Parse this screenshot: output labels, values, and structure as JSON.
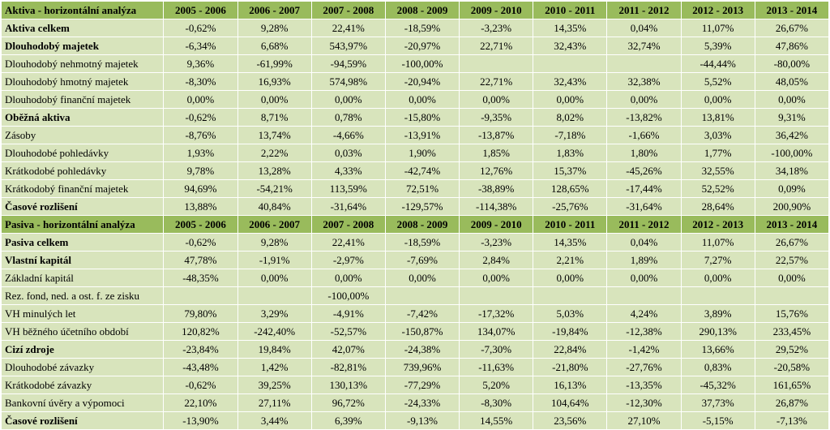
{
  "aktiva": {
    "header": [
      "Aktiva - horizontální analýza",
      "2005 - 2006",
      "2006 - 2007",
      "2007 - 2008",
      "2008 - 2009",
      "2009 - 2010",
      "2010 - 2011",
      "2011 - 2012",
      "2012 - 2013",
      "2013 - 2014"
    ],
    "rows": [
      {
        "label": "Aktiva celkem",
        "bold": true,
        "values": [
          "-0,62%",
          "9,28%",
          "22,41%",
          "-18,59%",
          "-3,23%",
          "14,35%",
          "0,04%",
          "11,07%",
          "26,67%"
        ]
      },
      {
        "label": "Dlouhodobý majetek",
        "bold": true,
        "values": [
          "-6,34%",
          "6,68%",
          "543,97%",
          "-20,97%",
          "22,71%",
          "32,43%",
          "32,74%",
          "5,39%",
          "47,86%"
        ]
      },
      {
        "label": "Dlouhodobý nehmotný majetek",
        "bold": false,
        "values": [
          "9,36%",
          "-61,99%",
          "-94,59%",
          "-100,00%",
          "",
          "",
          "",
          "-44,44%",
          "-80,00%"
        ]
      },
      {
        "label": "Dlouhodobý hmotný majetek",
        "bold": false,
        "values": [
          "-8,30%",
          "16,93%",
          "574,98%",
          "-20,94%",
          "22,71%",
          "32,43%",
          "32,38%",
          "5,52%",
          "48,05%"
        ]
      },
      {
        "label": "Dlouhodobý finanční majetek",
        "bold": false,
        "values": [
          "0,00%",
          "0,00%",
          "0,00%",
          "0,00%",
          "0,00%",
          "0,00%",
          "0,00%",
          "0,00%",
          "0,00%"
        ]
      },
      {
        "label": "Oběžná aktiva",
        "bold": true,
        "values": [
          "-0,62%",
          "8,71%",
          "0,78%",
          "-15,80%",
          "-9,35%",
          "8,02%",
          "-13,82%",
          "13,81%",
          "9,31%"
        ]
      },
      {
        "label": "Zásoby",
        "bold": false,
        "values": [
          "-8,76%",
          "13,74%",
          "-4,66%",
          "-13,91%",
          "-13,87%",
          "-7,18%",
          "-1,66%",
          "3,03%",
          "36,42%"
        ]
      },
      {
        "label": "Dlouhodobé pohledávky",
        "bold": false,
        "values": [
          "1,93%",
          "2,22%",
          "0,03%",
          "1,90%",
          "1,85%",
          "1,83%",
          "1,80%",
          "1,77%",
          "-100,00%"
        ]
      },
      {
        "label": "Krátkodobé pohledávky",
        "bold": false,
        "values": [
          "9,78%",
          "13,28%",
          "4,33%",
          "-42,74%",
          "12,76%",
          "15,37%",
          "-45,26%",
          "32,55%",
          "34,18%"
        ]
      },
      {
        "label": "Krátkodobý finanční majetek",
        "bold": false,
        "values": [
          "94,69%",
          "-54,21%",
          "113,59%",
          "72,51%",
          "-38,89%",
          "128,65%",
          "-17,44%",
          "52,52%",
          "0,09%"
        ]
      },
      {
        "label": "Časové rozlišení",
        "bold": true,
        "values": [
          "13,88%",
          "40,84%",
          "-31,64%",
          "-129,57%",
          "-114,38%",
          "-25,76%",
          "-31,64%",
          "28,64%",
          "200,90%"
        ]
      }
    ]
  },
  "pasiva": {
    "header": [
      "Pasiva - horizontální analýza",
      "2005 - 2006",
      "2006 - 2007",
      "2007 - 2008",
      "2008 - 2009",
      "2009 - 2010",
      "2010 - 2011",
      "2011 - 2012",
      "2012 - 2013",
      "2013 - 2014"
    ],
    "rows": [
      {
        "label": "Pasiva celkem",
        "bold": true,
        "values": [
          "-0,62%",
          "9,28%",
          "22,41%",
          "-18,59%",
          "-3,23%",
          "14,35%",
          "0,04%",
          "11,07%",
          "26,67%"
        ]
      },
      {
        "label": "Vlastní kapitál",
        "bold": true,
        "values": [
          "47,78%",
          "-1,91%",
          "-2,97%",
          "-7,69%",
          "2,84%",
          "2,21%",
          "1,89%",
          "7,27%",
          "22,57%"
        ]
      },
      {
        "label": "Základní kapitál",
        "bold": false,
        "values": [
          "-48,35%",
          "0,00%",
          "0,00%",
          "0,00%",
          "0,00%",
          "0,00%",
          "0,00%",
          "0,00%",
          "0,00%"
        ]
      },
      {
        "label": "Rez. fond, ned. a ost. f. ze zisku",
        "bold": false,
        "values": [
          "",
          "",
          "-100,00%",
          "",
          "",
          "",
          "",
          "",
          ""
        ]
      },
      {
        "label": "VH minulých let",
        "bold": false,
        "values": [
          "79,80%",
          "3,29%",
          "-4,91%",
          "-7,42%",
          "-17,32%",
          "5,03%",
          "4,24%",
          "3,89%",
          "15,76%"
        ]
      },
      {
        "label": "VH běžného účetního období",
        "bold": false,
        "values": [
          "120,82%",
          "-242,40%",
          "-52,57%",
          "-150,87%",
          "134,07%",
          "-19,84%",
          "-12,38%",
          "290,13%",
          "233,45%"
        ]
      },
      {
        "label": "Cizí zdroje",
        "bold": true,
        "values": [
          "-23,84%",
          "19,84%",
          "42,07%",
          "-24,38%",
          "-7,30%",
          "22,84%",
          "-1,42%",
          "13,66%",
          "29,52%"
        ]
      },
      {
        "label": "Dlouhodobé závazky",
        "bold": false,
        "values": [
          "-43,48%",
          "1,42%",
          "-82,81%",
          "739,96%",
          "-11,63%",
          "-21,80%",
          "-27,76%",
          "0,83%",
          "-20,58%"
        ]
      },
      {
        "label": "Krátkodobé závazky",
        "bold": false,
        "values": [
          "-0,62%",
          "39,25%",
          "130,13%",
          "-77,29%",
          "5,20%",
          "16,13%",
          "-13,35%",
          "-45,32%",
          "161,65%"
        ]
      },
      {
        "label": "Bankovní úvěry a výpomoci",
        "bold": false,
        "values": [
          "22,10%",
          "27,11%",
          "96,72%",
          "-24,33%",
          "-8,30%",
          "104,64%",
          "-12,30%",
          "37,73%",
          "26,87%"
        ]
      },
      {
        "label": "Časové rozlišení",
        "bold": true,
        "values": [
          "-13,90%",
          "3,44%",
          "6,39%",
          "-9,13%",
          "14,55%",
          "23,56%",
          "27,10%",
          "-5,15%",
          "-7,13%"
        ]
      }
    ]
  }
}
